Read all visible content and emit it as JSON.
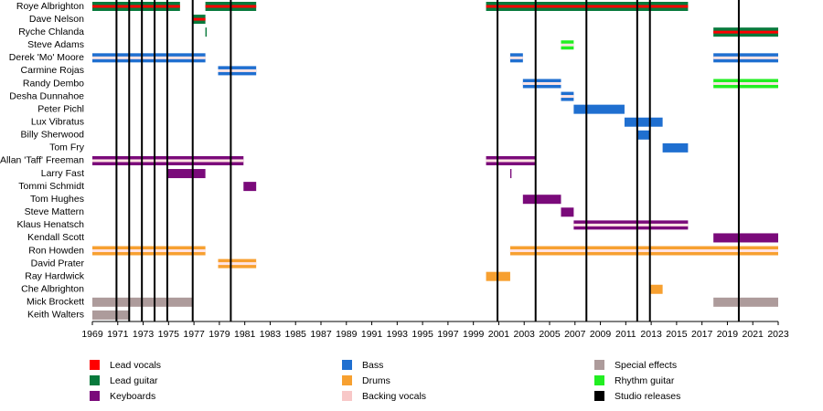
{
  "chart_data": {
    "type": "timeline",
    "xlim": [
      1969,
      2023
    ],
    "xticks": [
      1969,
      1971,
      1973,
      1975,
      1977,
      1979,
      1981,
      1983,
      1985,
      1987,
      1989,
      1991,
      1993,
      1995,
      1997,
      1999,
      2001,
      2003,
      2005,
      2007,
      2009,
      2011,
      2013,
      2015,
      2017,
      2019,
      2021,
      2023
    ],
    "releases": [
      1970.9,
      1971.9,
      1972.9,
      1973.9,
      1974.9,
      1976.9,
      1979.9,
      2000.9,
      2003.9,
      2007.9,
      2011.9,
      2012.9,
      2019.9
    ],
    "release_color": "#000000",
    "members": [
      {
        "name": "Roye Albrighton",
        "periods": [
          {
            "start": 1969,
            "end": 1975.9,
            "color": "#087a3c",
            "stripe": "#ff0000"
          },
          {
            "start": 1977.9,
            "end": 1981.9,
            "color": "#087a3c",
            "stripe": "#ff0000"
          },
          {
            "start": 2000,
            "end": 2015.9,
            "color": "#087a3c",
            "stripe": "#ff0000"
          }
        ]
      },
      {
        "name": "Dave Nelson",
        "periods": [
          {
            "start": 1976.9,
            "end": 1977.9,
            "color": "#087a3c",
            "stripe": "#ff0000"
          }
        ]
      },
      {
        "name": "Ryche Chlanda",
        "periods": [
          {
            "start": 1977.9,
            "end": 1978.0,
            "color": "#087a3c"
          },
          {
            "start": 2017.9,
            "end": 2023,
            "color": "#087a3c",
            "stripe": "#ff0000"
          }
        ]
      },
      {
        "name": "Steve Adams",
        "periods": [
          {
            "start": 2005.9,
            "end": 2006.9,
            "color": "#22ee22",
            "stripe": "#ffe4e4"
          }
        ]
      },
      {
        "name": "Derek 'Mo' Moore",
        "periods": [
          {
            "start": 1969,
            "end": 1977.9,
            "color": "#1f6fd0",
            "stripe": "#ffe4e4"
          },
          {
            "start": 2001.9,
            "end": 2002.9,
            "color": "#1f6fd0",
            "stripe": "#ffe4e4"
          },
          {
            "start": 2017.9,
            "end": 2023,
            "color": "#1f6fd0",
            "stripe": "#ffe4e4"
          }
        ]
      },
      {
        "name": "Carmine Rojas",
        "periods": [
          {
            "start": 1978.9,
            "end": 1981.9,
            "color": "#1f6fd0",
            "stripe": "#ffe4e4"
          }
        ]
      },
      {
        "name": "Randy Dembo",
        "periods": [
          {
            "start": 2002.9,
            "end": 2005.9,
            "color": "#1f6fd0",
            "stripe": "#ffe4e4"
          },
          {
            "start": 2017.9,
            "end": 2023,
            "color": "#22ee22",
            "stripe": "#ffe4e4"
          }
        ]
      },
      {
        "name": "Desha Dunnahoe",
        "periods": [
          {
            "start": 2005.9,
            "end": 2006.9,
            "color": "#1f6fd0",
            "stripe": "#ffe4e4"
          }
        ]
      },
      {
        "name": "Peter Pichl",
        "periods": [
          {
            "start": 2006.9,
            "end": 2010.9,
            "color": "#1f6fd0"
          }
        ]
      },
      {
        "name": "Lux Vibratus",
        "periods": [
          {
            "start": 2010.9,
            "end": 2013.9,
            "color": "#1f6fd0"
          }
        ]
      },
      {
        "name": "Billy Sherwood",
        "periods": [
          {
            "start": 2011.9,
            "end": 2012.9,
            "color": "#1f6fd0"
          }
        ]
      },
      {
        "name": "Tom Fry",
        "periods": [
          {
            "start": 2013.9,
            "end": 2015.9,
            "color": "#1f6fd0"
          }
        ]
      },
      {
        "name": "Allan 'Taff' Freeman",
        "periods": [
          {
            "start": 1969,
            "end": 1980.9,
            "color": "#7a0a7a",
            "stripe": "#ffe4e4"
          },
          {
            "start": 2000,
            "end": 2003.9,
            "color": "#7a0a7a",
            "stripe": "#ffe4e4"
          }
        ]
      },
      {
        "name": "Larry Fast",
        "periods": [
          {
            "start": 1974.9,
            "end": 1977.9,
            "color": "#7a0a7a"
          },
          {
            "start": 2001.9,
            "end": 2002.0,
            "color": "#7a0a7a"
          }
        ]
      },
      {
        "name": "Tommi Schmidt",
        "periods": [
          {
            "start": 1980.9,
            "end": 1981.9,
            "color": "#7a0a7a"
          }
        ]
      },
      {
        "name": "Tom Hughes",
        "periods": [
          {
            "start": 2002.9,
            "end": 2005.9,
            "color": "#7a0a7a"
          }
        ]
      },
      {
        "name": "Steve Mattern",
        "periods": [
          {
            "start": 2005.9,
            "end": 2006.9,
            "color": "#7a0a7a"
          }
        ]
      },
      {
        "name": "Klaus Henatsch",
        "periods": [
          {
            "start": 2006.9,
            "end": 2015.9,
            "color": "#7a0a7a",
            "stripe": "#ffe4e4"
          }
        ]
      },
      {
        "name": "Kendall Scott",
        "periods": [
          {
            "start": 2017.9,
            "end": 2023,
            "color": "#7a0a7a"
          }
        ]
      },
      {
        "name": "Ron Howden",
        "periods": [
          {
            "start": 1969,
            "end": 1977.9,
            "color": "#f7a030",
            "stripe": "#ffe4e4"
          },
          {
            "start": 2001.9,
            "end": 2023,
            "color": "#f7a030",
            "stripe": "#ffe4e4"
          }
        ]
      },
      {
        "name": "David Prater",
        "periods": [
          {
            "start": 1978.9,
            "end": 1981.9,
            "color": "#f7a030",
            "stripe": "#ffe4e4"
          }
        ]
      },
      {
        "name": "Ray Hardwick",
        "periods": [
          {
            "start": 2000,
            "end": 2001.9,
            "color": "#f7a030"
          }
        ]
      },
      {
        "name": "Che Albrighton",
        "periods": [
          {
            "start": 2012.9,
            "end": 2013.9,
            "color": "#f7a030"
          }
        ]
      },
      {
        "name": "Mick Brockett",
        "periods": [
          {
            "start": 1969,
            "end": 1976.9,
            "color": "#ad9b9b"
          },
          {
            "start": 2017.9,
            "end": 2023,
            "color": "#ad9b9b"
          }
        ]
      },
      {
        "name": "Keith Walters",
        "periods": [
          {
            "start": 1969,
            "end": 1971.9,
            "color": "#ad9b9b"
          }
        ]
      }
    ],
    "legend": [
      {
        "name": "Lead vocals",
        "color": "#ff0000"
      },
      {
        "name": "Lead guitar",
        "color": "#087a3c"
      },
      {
        "name": "Keyboards",
        "color": "#7a0a7a"
      },
      {
        "name": "Bass",
        "color": "#1f6fd0"
      },
      {
        "name": "Drums",
        "color": "#f7a030"
      },
      {
        "name": "Backing vocals",
        "color": "#f8c8c8"
      },
      {
        "name": "Special effects",
        "color": "#ad9b9b"
      },
      {
        "name": "Rhythm guitar",
        "color": "#22ee22"
      },
      {
        "name": "Studio releases",
        "color": "#000000"
      }
    ]
  }
}
